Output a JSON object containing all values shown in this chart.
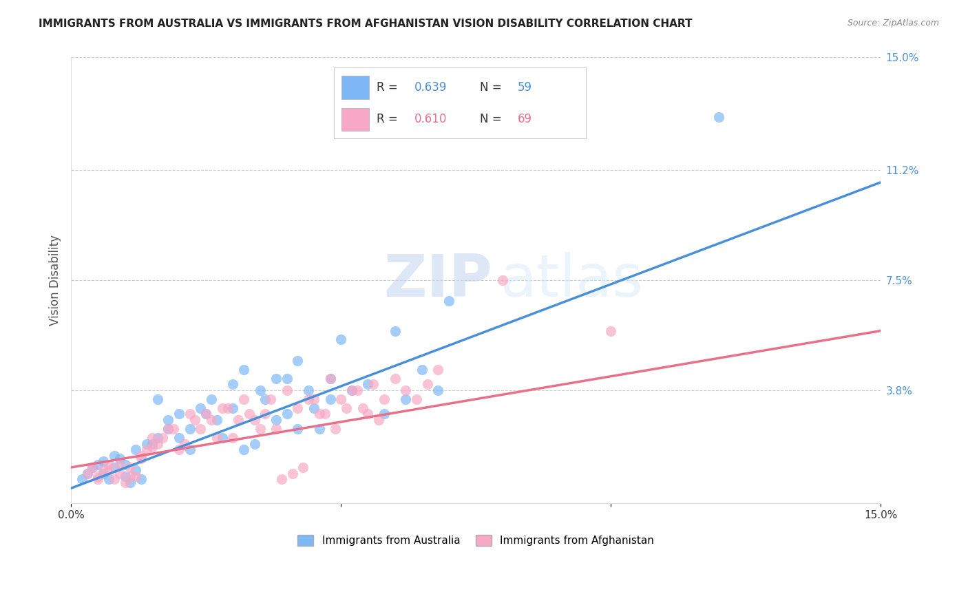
{
  "title": "IMMIGRANTS FROM AUSTRALIA VS IMMIGRANTS FROM AFGHANISTAN VISION DISABILITY CORRELATION CHART",
  "source": "Source: ZipAtlas.com",
  "ylabel": "Vision Disability",
  "xlim": [
    0.0,
    0.15
  ],
  "ylim": [
    0.0,
    0.15
  ],
  "ytick_labels_right": [
    "15.0%",
    "11.2%",
    "7.5%",
    "3.8%"
  ],
  "ytick_positions_right": [
    0.15,
    0.112,
    0.075,
    0.038
  ],
  "blue_R": "0.639",
  "blue_N": "59",
  "pink_R": "0.610",
  "pink_N": "69",
  "blue_color": "#7EB8F7",
  "pink_color": "#F7A8C4",
  "blue_line_color": "#4A90D9",
  "pink_line_color": "#E8708A",
  "blue_scatter": [
    [
      0.005,
      0.013
    ],
    [
      0.006,
      0.01
    ],
    [
      0.007,
      0.008
    ],
    [
      0.008,
      0.012
    ],
    [
      0.009,
      0.015
    ],
    [
      0.01,
      0.009
    ],
    [
      0.011,
      0.007
    ],
    [
      0.012,
      0.011
    ],
    [
      0.013,
      0.008
    ],
    [
      0.015,
      0.02
    ],
    [
      0.016,
      0.035
    ],
    [
      0.018,
      0.025
    ],
    [
      0.02,
      0.022
    ],
    [
      0.022,
      0.018
    ],
    [
      0.025,
      0.03
    ],
    [
      0.027,
      0.028
    ],
    [
      0.03,
      0.032
    ],
    [
      0.032,
      0.018
    ],
    [
      0.035,
      0.038
    ],
    [
      0.038,
      0.028
    ],
    [
      0.04,
      0.042
    ],
    [
      0.042,
      0.025
    ],
    [
      0.045,
      0.032
    ],
    [
      0.048,
      0.035
    ],
    [
      0.05,
      0.055
    ],
    [
      0.052,
      0.038
    ],
    [
      0.055,
      0.04
    ],
    [
      0.058,
      0.03
    ],
    [
      0.06,
      0.058
    ],
    [
      0.062,
      0.035
    ],
    [
      0.065,
      0.045
    ],
    [
      0.068,
      0.038
    ],
    [
      0.07,
      0.068
    ],
    [
      0.002,
      0.008
    ],
    [
      0.003,
      0.01
    ],
    [
      0.004,
      0.012
    ],
    [
      0.006,
      0.014
    ],
    [
      0.008,
      0.016
    ],
    [
      0.01,
      0.013
    ],
    [
      0.012,
      0.018
    ],
    [
      0.014,
      0.02
    ],
    [
      0.016,
      0.022
    ],
    [
      0.018,
      0.028
    ],
    [
      0.02,
      0.03
    ],
    [
      0.022,
      0.025
    ],
    [
      0.024,
      0.032
    ],
    [
      0.026,
      0.035
    ],
    [
      0.028,
      0.022
    ],
    [
      0.03,
      0.04
    ],
    [
      0.032,
      0.045
    ],
    [
      0.034,
      0.02
    ],
    [
      0.036,
      0.035
    ],
    [
      0.038,
      0.042
    ],
    [
      0.04,
      0.03
    ],
    [
      0.042,
      0.048
    ],
    [
      0.044,
      0.038
    ],
    [
      0.046,
      0.025
    ],
    [
      0.048,
      0.042
    ],
    [
      0.12,
      0.13
    ]
  ],
  "pink_scatter": [
    [
      0.004,
      0.012
    ],
    [
      0.005,
      0.009
    ],
    [
      0.006,
      0.011
    ],
    [
      0.007,
      0.013
    ],
    [
      0.008,
      0.008
    ],
    [
      0.009,
      0.01
    ],
    [
      0.01,
      0.007
    ],
    [
      0.011,
      0.012
    ],
    [
      0.012,
      0.009
    ],
    [
      0.013,
      0.015
    ],
    [
      0.014,
      0.018
    ],
    [
      0.015,
      0.022
    ],
    [
      0.016,
      0.02
    ],
    [
      0.018,
      0.025
    ],
    [
      0.02,
      0.018
    ],
    [
      0.022,
      0.03
    ],
    [
      0.024,
      0.025
    ],
    [
      0.026,
      0.028
    ],
    [
      0.028,
      0.032
    ],
    [
      0.03,
      0.022
    ],
    [
      0.032,
      0.035
    ],
    [
      0.034,
      0.028
    ],
    [
      0.036,
      0.03
    ],
    [
      0.038,
      0.025
    ],
    [
      0.04,
      0.038
    ],
    [
      0.042,
      0.032
    ],
    [
      0.044,
      0.035
    ],
    [
      0.046,
      0.03
    ],
    [
      0.048,
      0.042
    ],
    [
      0.05,
      0.035
    ],
    [
      0.052,
      0.038
    ],
    [
      0.054,
      0.032
    ],
    [
      0.056,
      0.04
    ],
    [
      0.058,
      0.035
    ],
    [
      0.06,
      0.042
    ],
    [
      0.062,
      0.038
    ],
    [
      0.064,
      0.035
    ],
    [
      0.066,
      0.04
    ],
    [
      0.068,
      0.045
    ],
    [
      0.003,
      0.01
    ],
    [
      0.005,
      0.008
    ],
    [
      0.007,
      0.011
    ],
    [
      0.009,
      0.013
    ],
    [
      0.011,
      0.009
    ],
    [
      0.013,
      0.016
    ],
    [
      0.015,
      0.019
    ],
    [
      0.017,
      0.022
    ],
    [
      0.019,
      0.025
    ],
    [
      0.021,
      0.02
    ],
    [
      0.023,
      0.028
    ],
    [
      0.025,
      0.03
    ],
    [
      0.027,
      0.022
    ],
    [
      0.029,
      0.032
    ],
    [
      0.031,
      0.028
    ],
    [
      0.033,
      0.03
    ],
    [
      0.035,
      0.025
    ],
    [
      0.037,
      0.035
    ],
    [
      0.039,
      0.008
    ],
    [
      0.041,
      0.01
    ],
    [
      0.043,
      0.012
    ],
    [
      0.045,
      0.035
    ],
    [
      0.047,
      0.03
    ],
    [
      0.049,
      0.025
    ],
    [
      0.051,
      0.032
    ],
    [
      0.053,
      0.038
    ],
    [
      0.055,
      0.03
    ],
    [
      0.057,
      0.028
    ],
    [
      0.08,
      0.075
    ],
    [
      0.1,
      0.058
    ]
  ],
  "blue_line_x": [
    0.0,
    0.15
  ],
  "blue_line_y": [
    0.005,
    0.108
  ],
  "pink_line_x": [
    0.0,
    0.15
  ],
  "pink_line_y": [
    0.012,
    0.058
  ],
  "watermark_zip": "ZIP",
  "watermark_atlas": "atlas",
  "grid_color": "#CCCCCC",
  "background_color": "#FFFFFF",
  "legend_label_blue": "Immigrants from Australia",
  "legend_label_pink": "Immigrants from Afghanistan"
}
